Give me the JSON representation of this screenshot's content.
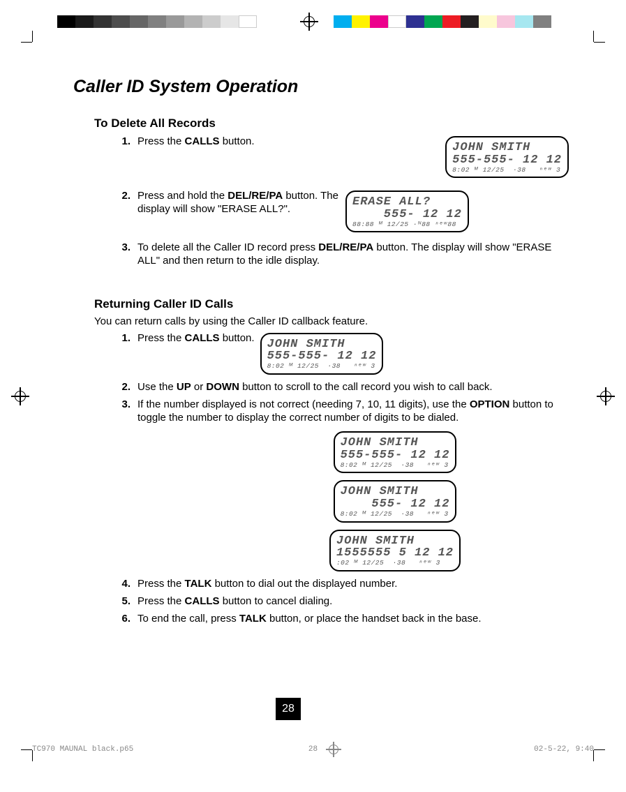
{
  "printbars": {
    "left_blocks": [
      {
        "w": 26,
        "c": "#000000"
      },
      {
        "w": 26,
        "c": "#1a1a1a"
      },
      {
        "w": 26,
        "c": "#333333"
      },
      {
        "w": 26,
        "c": "#4d4d4d"
      },
      {
        "w": 26,
        "c": "#666666"
      },
      {
        "w": 26,
        "c": "#808080"
      },
      {
        "w": 26,
        "c": "#999999"
      },
      {
        "w": 26,
        "c": "#b3b3b3"
      },
      {
        "w": 26,
        "c": "#cccccc"
      },
      {
        "w": 26,
        "c": "#e6e6e6"
      },
      {
        "w": 26,
        "c": "#ffffff"
      }
    ],
    "right_blocks": [
      {
        "w": 26,
        "c": "#00aeef"
      },
      {
        "w": 26,
        "c": "#fff200"
      },
      {
        "w": 26,
        "c": "#ec008c"
      },
      {
        "w": 26,
        "c": "#ffffff"
      },
      {
        "w": 26,
        "c": "#2e3192"
      },
      {
        "w": 26,
        "c": "#00a651"
      },
      {
        "w": 26,
        "c": "#ed1c24"
      },
      {
        "w": 26,
        "c": "#231f20"
      },
      {
        "w": 26,
        "c": "#fffbcc"
      },
      {
        "w": 26,
        "c": "#f7c6dd"
      },
      {
        "w": 26,
        "c": "#a6e7f0"
      },
      {
        "w": 26,
        "c": "#808080"
      }
    ]
  },
  "title": "Caller ID System Operation",
  "section1": {
    "heading": "To Delete All Records",
    "steps": [
      {
        "n": "1.",
        "text_pre": "Press the ",
        "b1": "CALLS",
        "text_post": " button.",
        "lcd": {
          "l1": "JOHN SMITH",
          "l2": "555-555- 12 12",
          "l3": "8:02 ᴹ 12/25  ·38   ⁿᵉʷ 3"
        }
      },
      {
        "n": "2.",
        "text_pre": "Press and hold the ",
        "b1": "DEL/RE/PA",
        "text_post": " button. The display will show \"ERASE ALL?\".",
        "lcd": {
          "l1": "ERASE ALL?",
          "l2": "    555- 12 12",
          "l3": "88:88 ᴹ 12/25 ·ᴺ88 ⁿᵉʷ88"
        }
      },
      {
        "n": "3.",
        "text_pre": "To delete all the Caller ID record press ",
        "b1": "DEL/RE/PA",
        "text_post": " button. The display will show \"ERASE ALL\" and then return to the idle display."
      }
    ]
  },
  "section2": {
    "heading": "Returning Caller ID Calls",
    "intro": "You can return calls by using the Caller ID callback feature.",
    "steps": [
      {
        "n": "1.",
        "text_pre": "Press the ",
        "b1": "CALLS",
        "text_post": " button.",
        "lcd": {
          "l1": "JOHN SMITH",
          "l2": "555-555- 12 12",
          "l3": "8:02 ᴹ 12/25  ·38   ⁿᵉʷ 3"
        }
      },
      {
        "n": "2.",
        "parts": [
          {
            "t": "Use the "
          },
          {
            "b": "UP"
          },
          {
            "t": " or "
          },
          {
            "b": "DOWN"
          },
          {
            "t": " button to scroll to the call record you wish to call back."
          }
        ]
      },
      {
        "n": "3.",
        "parts": [
          {
            "t": "If the number displayed is not correct (needing 7, 10, 11 digits), use the "
          },
          {
            "b": "OPTION"
          },
          {
            "t": " button to toggle the number to display the correct number of digits to be dialed."
          }
        ],
        "lcds": [
          {
            "l1": "JOHN SMITH",
            "l2": "555-555- 12 12",
            "l3": "8:02 ᴹ 12/25  ·38   ⁿᵉʷ 3"
          },
          {
            "l1": "JOHN SMITH",
            "l2": "    555- 12 12",
            "l3": "8:02 ᴹ 12/25  ·38   ⁿᵉʷ 3"
          },
          {
            "l1": "JOHN SMITH",
            "l2": "1555555 5 12 12",
            "l3": ":02 ᴹ 12/25  ·38   ⁿᵉʷ 3"
          }
        ]
      },
      {
        "n": "4.",
        "parts": [
          {
            "t": "Press the "
          },
          {
            "b": "TALK"
          },
          {
            "t": " button to dial out the displayed number."
          }
        ]
      },
      {
        "n": "5.",
        "parts": [
          {
            "t": "Press the "
          },
          {
            "b": "CALLS"
          },
          {
            "t": " button to cancel dialing."
          }
        ]
      },
      {
        "n": "6.",
        "parts": [
          {
            "t": "To end the call, press "
          },
          {
            "b": "TALK"
          },
          {
            "t": " button, or place the handset back in the base."
          }
        ]
      }
    ]
  },
  "page_number": "28",
  "footer": {
    "left": "TC970 MAUNAL black.p65",
    "mid": "28",
    "right": "02-5-22, 9:40"
  }
}
